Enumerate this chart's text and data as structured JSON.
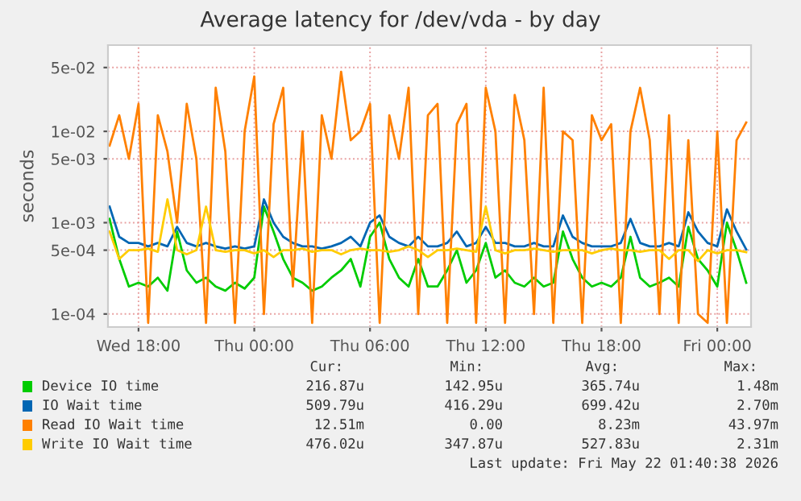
{
  "chart_data": {
    "type": "line",
    "title": "Average latency for /dev/vda - by day",
    "ylabel": "seconds",
    "log": "y",
    "x": [
      "2026-05-20T16:30",
      "2026-05-20T17:00",
      "2026-05-20T17:30",
      "2026-05-20T18:00",
      "2026-05-20T18:30",
      "2026-05-20T19:00",
      "2026-05-20T19:30",
      "2026-05-20T20:00",
      "2026-05-20T20:30",
      "2026-05-20T21:00",
      "2026-05-20T21:30",
      "2026-05-20T22:00",
      "2026-05-20T22:30",
      "2026-05-20T23:00",
      "2026-05-20T23:30",
      "2026-05-21T00:00",
      "2026-05-21T00:30",
      "2026-05-21T01:00",
      "2026-05-21T01:30",
      "2026-05-21T02:00",
      "2026-05-21T02:30",
      "2026-05-21T03:00",
      "2026-05-21T03:30",
      "2026-05-21T04:00",
      "2026-05-21T04:30",
      "2026-05-21T05:00",
      "2026-05-21T05:30",
      "2026-05-21T06:00",
      "2026-05-21T06:30",
      "2026-05-21T07:00",
      "2026-05-21T07:30",
      "2026-05-21T08:00",
      "2026-05-21T08:30",
      "2026-05-21T09:00",
      "2026-05-21T09:30",
      "2026-05-21T10:00",
      "2026-05-21T10:30",
      "2026-05-21T11:00",
      "2026-05-21T11:30",
      "2026-05-21T12:00",
      "2026-05-21T12:30",
      "2026-05-21T13:00",
      "2026-05-21T13:30",
      "2026-05-21T14:00",
      "2026-05-21T14:30",
      "2026-05-21T15:00",
      "2026-05-21T15:30",
      "2026-05-21T16:00",
      "2026-05-21T16:30",
      "2026-05-21T17:00",
      "2026-05-21T17:30",
      "2026-05-21T18:00",
      "2026-05-21T18:30",
      "2026-05-21T19:00",
      "2026-05-21T19:30",
      "2026-05-21T20:00",
      "2026-05-21T20:30",
      "2026-05-21T21:00",
      "2026-05-21T21:30",
      "2026-05-21T22:00",
      "2026-05-21T22:30",
      "2026-05-21T23:00",
      "2026-05-21T23:30",
      "2026-05-22T00:00",
      "2026-05-22T00:30",
      "2026-05-22T01:00",
      "2026-05-22T01:30"
    ],
    "series": [
      {
        "name": "Device IO time",
        "color": "#00cc00",
        "values": [
          0.0011,
          0.0004,
          0.0002,
          0.00022,
          0.0002,
          0.00025,
          0.00018,
          0.0008,
          0.0003,
          0.00022,
          0.00025,
          0.0002,
          0.00018,
          0.00022,
          0.00019,
          0.00025,
          0.0015,
          0.0008,
          0.0004,
          0.00025,
          0.00022,
          0.00018,
          0.0002,
          0.00025,
          0.0003,
          0.0004,
          0.0002,
          0.0007,
          0.001,
          0.0004,
          0.00025,
          0.0002,
          0.0004,
          0.0002,
          0.0002,
          0.0003,
          0.0005,
          0.00022,
          0.0003,
          0.0006,
          0.00025,
          0.0003,
          0.00022,
          0.0002,
          0.00025,
          0.0002,
          0.00022,
          0.0008,
          0.0004,
          0.00025,
          0.0002,
          0.00022,
          0.0002,
          0.00025,
          0.0007,
          0.00025,
          0.0002,
          0.00022,
          0.00025,
          0.0002,
          0.0009,
          0.0004,
          0.0003,
          0.0002,
          0.001,
          0.0005,
          0.00022
        ]
      },
      {
        "name": "IO Wait time",
        "color": "#0066b3",
        "values": [
          0.0015,
          0.0007,
          0.0006,
          0.0006,
          0.00055,
          0.0006,
          0.00055,
          0.0009,
          0.0006,
          0.00055,
          0.0006,
          0.00055,
          0.00052,
          0.00055,
          0.00052,
          0.00055,
          0.0018,
          0.001,
          0.0007,
          0.0006,
          0.00055,
          0.00055,
          0.00052,
          0.00055,
          0.0006,
          0.0007,
          0.00055,
          0.001,
          0.0012,
          0.0007,
          0.0006,
          0.00055,
          0.0007,
          0.00055,
          0.00055,
          0.0006,
          0.0008,
          0.00055,
          0.0006,
          0.0009,
          0.0006,
          0.0006,
          0.00055,
          0.00055,
          0.0006,
          0.00055,
          0.00055,
          0.0012,
          0.0007,
          0.0006,
          0.00055,
          0.00055,
          0.00055,
          0.0006,
          0.0011,
          0.0006,
          0.00055,
          0.00055,
          0.0006,
          0.00055,
          0.0013,
          0.0008,
          0.0006,
          0.00055,
          0.0014,
          0.0008,
          0.00051
        ]
      },
      {
        "name": "Read IO Wait time",
        "color": "#ff8000",
        "values": [
          0.007,
          0.015,
          0.005,
          0.02,
          8e-05,
          0.015,
          0.006,
          0.001,
          0.02,
          0.005,
          8e-05,
          0.03,
          0.006,
          8e-05,
          0.01,
          0.04,
          0.0001,
          0.012,
          0.03,
          0.0002,
          0.01,
          8e-05,
          0.015,
          0.005,
          0.045,
          0.008,
          0.01,
          0.02,
          8e-05,
          0.015,
          0.005,
          0.03,
          0.0001,
          0.015,
          0.02,
          8e-05,
          0.012,
          0.02,
          8e-05,
          0.03,
          0.01,
          8e-05,
          0.025,
          0.008,
          0.0001,
          0.03,
          8e-05,
          0.01,
          0.008,
          8e-05,
          0.015,
          0.008,
          0.012,
          8e-05,
          0.01,
          0.03,
          0.008,
          0.0001,
          0.015,
          8e-05,
          0.008,
          0.0001,
          8e-05,
          0.01,
          8e-05,
          0.008,
          0.0125
        ]
      },
      {
        "name": "Write IO Wait time",
        "color": "#ffcc00",
        "values": [
          0.0008,
          0.0004,
          0.0005,
          0.0005,
          0.00052,
          0.00048,
          0.0018,
          0.0005,
          0.00045,
          0.0005,
          0.0015,
          0.0005,
          0.00048,
          0.0005,
          0.0005,
          0.00046,
          0.0005,
          0.00042,
          0.0005,
          0.0005,
          0.00052,
          0.00048,
          0.0005,
          0.0005,
          0.00045,
          0.0005,
          0.00052,
          0.0005,
          0.0005,
          0.00048,
          0.0005,
          0.00055,
          0.0005,
          0.00042,
          0.0005,
          0.0005,
          0.00052,
          0.0005,
          0.00048,
          0.0015,
          0.0005,
          0.00046,
          0.0005,
          0.0005,
          0.00052,
          0.0005,
          0.00048,
          0.0005,
          0.0005,
          0.0005,
          0.00046,
          0.0005,
          0.00052,
          0.0005,
          0.0005,
          0.00048,
          0.0005,
          0.0005,
          0.0004,
          0.0005,
          0.0005,
          0.00038,
          0.0005,
          0.00046,
          0.0005,
          0.0005,
          0.000476
        ]
      }
    ],
    "xlim": [
      "2026-05-20T16:25",
      "2026-05-22T01:45"
    ],
    "xticks": [
      {
        "value": "2026-05-20T18:00",
        "label": "Wed 18:00"
      },
      {
        "value": "2026-05-21T00:00",
        "label": "Thu 00:00"
      },
      {
        "value": "2026-05-21T06:00",
        "label": "Thu 06:00"
      },
      {
        "value": "2026-05-21T12:00",
        "label": "Thu 12:00"
      },
      {
        "value": "2026-05-21T18:00",
        "label": "Thu 18:00"
      },
      {
        "value": "2026-05-22T00:00",
        "label": "Fri 00:00"
      }
    ],
    "ylim": [
      7.2e-05,
      0.088
    ],
    "yticks": [
      {
        "value": 0.0001,
        "label": "1e-04"
      },
      {
        "value": 0.0005,
        "label": "5e-04"
      },
      {
        "value": 0.001,
        "label": "1e-03"
      },
      {
        "value": 0.005,
        "label": "5e-03"
      },
      {
        "value": 0.01,
        "label": "1e-02"
      },
      {
        "value": 0.05,
        "label": "5e-02"
      }
    ],
    "grid": true,
    "legend": "bottom",
    "annotations": [
      "Cur:",
      "Min:",
      "Avg:",
      "Max:",
      "216.87u",
      "142.95u",
      "365.74u",
      "1.48m",
      "509.79u",
      "416.29u",
      "699.42u",
      "2.70m",
      "12.51m",
      "0.00",
      "8.23m",
      "43.97m",
      "476.02u",
      "347.87u",
      "527.83u",
      "2.31m",
      "Last update: Fri May 22 01:40:38 2026"
    ]
  }
}
